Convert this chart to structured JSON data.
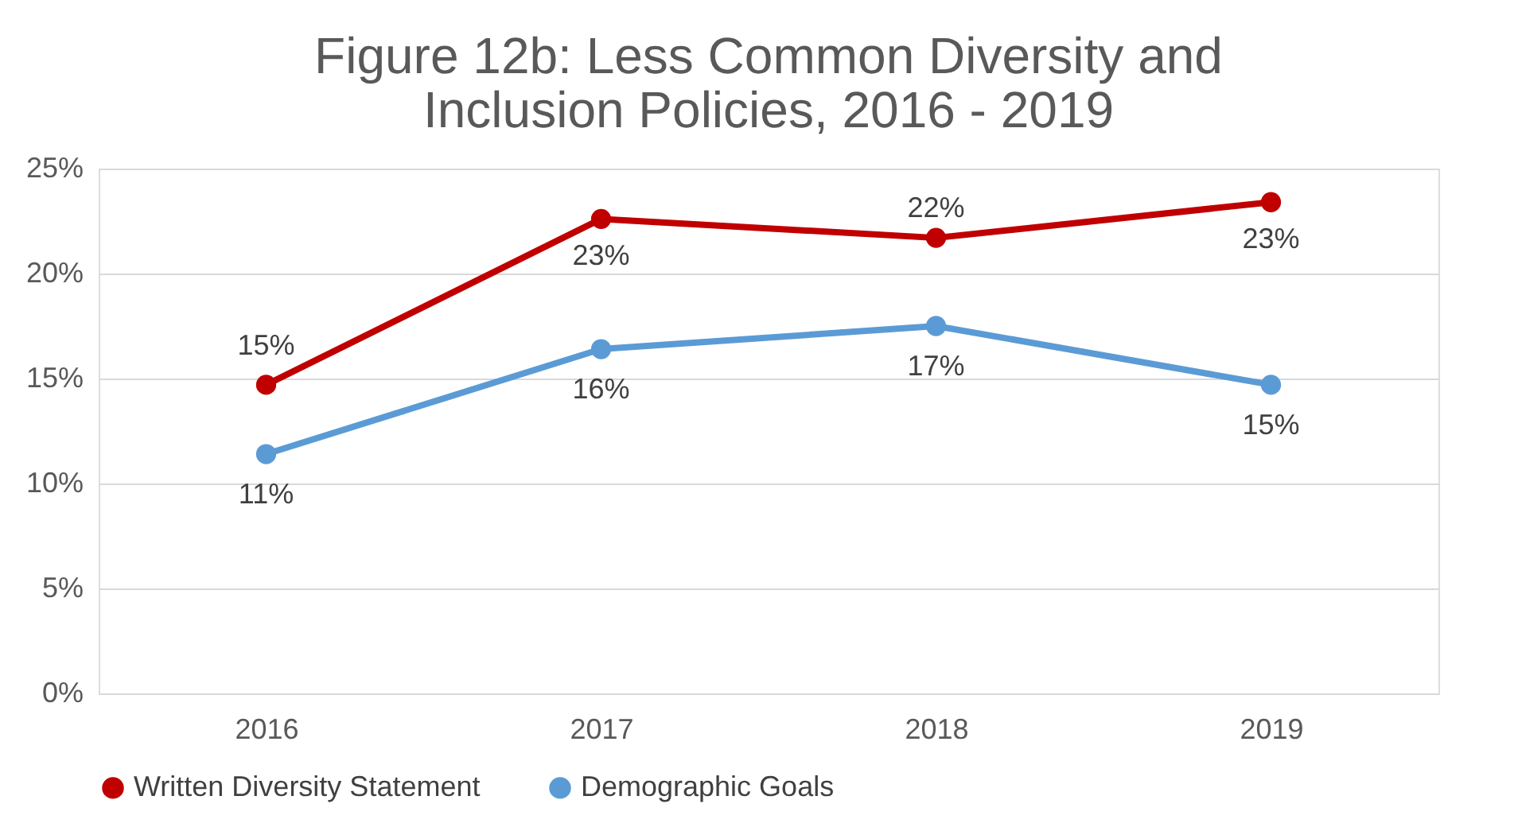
{
  "chart_data": {
    "type": "line",
    "title": "Figure 12b:  Less Common Diversity and Inclusion Policies, 2016 - 2019",
    "categories": [
      "2016",
      "2017",
      "2018",
      "2019"
    ],
    "series": [
      {
        "name": "Written Diversity Statement",
        "color": "#c00000",
        "values": [
          14.7,
          22.6,
          21.7,
          23.4
        ],
        "value_labels": [
          "15%",
          "23%",
          "22%",
          "23%"
        ]
      },
      {
        "name": "Demographic Goals",
        "color": "#5b9bd5",
        "values": [
          11.4,
          16.4,
          17.5,
          14.7
        ],
        "value_labels": [
          "11%",
          "16%",
          "17%",
          "15%"
        ]
      }
    ],
    "ylim": [
      0,
      25
    ],
    "yticks": [
      {
        "value": 0,
        "label": "0%"
      },
      {
        "value": 5,
        "label": "5%"
      },
      {
        "value": 10,
        "label": "10%"
      },
      {
        "value": 15,
        "label": "15%"
      },
      {
        "value": 20,
        "label": "20%"
      },
      {
        "value": 25,
        "label": "25%"
      }
    ],
    "grid": "y",
    "legend": "bottom",
    "marker": "circle",
    "line_style": "solid"
  }
}
